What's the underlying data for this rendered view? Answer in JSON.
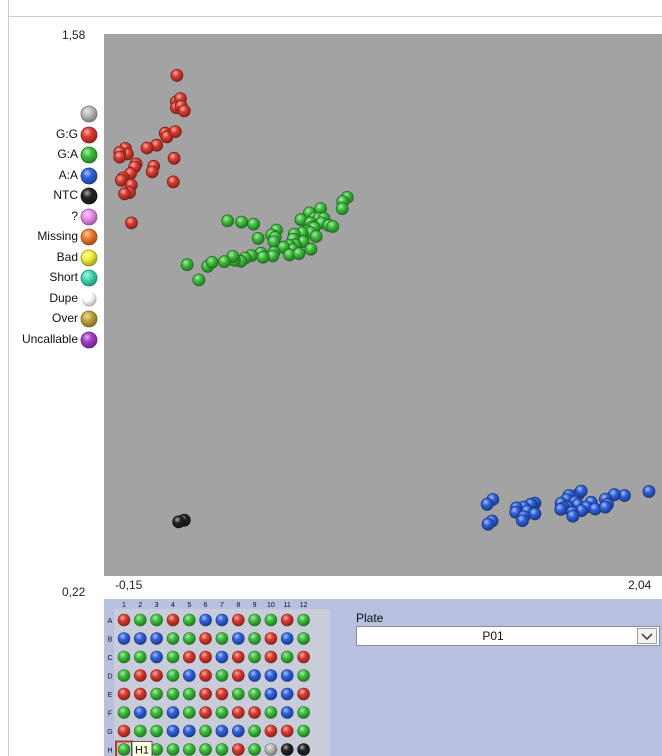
{
  "colors": {
    "blank": "#bdbdbd",
    "GG": "#dd3b30",
    "GA": "#3cc03c",
    "AA": "#2f62e0",
    "NTC": "#222222",
    "unknown": "#f08ef0",
    "missing": "#f07c2e",
    "bad": "#f6f03a",
    "short": "#43d9b9",
    "dupe": "#ffffff",
    "over": "#c4a53c",
    "uncallable": "#a43ec8",
    "plot_bg": "#a3a3a3",
    "panel_bg": "#b7c0de"
  },
  "legend": [
    {
      "label": "",
      "color": "#bdbdbd"
    },
    {
      "label": "G:G",
      "color": "#dd3b30"
    },
    {
      "label": "G:A",
      "color": "#3cc03c"
    },
    {
      "label": "A:A",
      "color": "#2f62e0"
    },
    {
      "label": "NTC",
      "color": "#222222"
    },
    {
      "label": "?",
      "color": "#f08ef0"
    },
    {
      "label": "Missing",
      "color": "#f07c2e"
    },
    {
      "label": "Bad",
      "color": "#f6f03a"
    },
    {
      "label": "Short",
      "color": "#43d9b9"
    },
    {
      "label": "Dupe",
      "color": "#ffffff"
    },
    {
      "label": "Over",
      "color": "#c4a53c"
    },
    {
      "label": "Uncallable",
      "color": "#a43ec8"
    }
  ],
  "chart_data": {
    "type": "scatter",
    "title": "",
    "xlabel": "",
    "ylabel": "",
    "xlim": [
      -0.15,
      2.04
    ],
    "ylim": [
      0.22,
      1.58
    ],
    "x_tick_labels": [
      "-0,15",
      "2,04"
    ],
    "y_tick_labels": [
      "1,58",
      "0,22"
    ],
    "grid": false,
    "series": [
      {
        "name": "G:G",
        "color": "#dd3b30",
        "points": [
          [
            0.136,
            1.476
          ],
          [
            0.134,
            1.41
          ],
          [
            0.15,
            1.418
          ],
          [
            0.134,
            1.395
          ],
          [
            0.153,
            1.399
          ],
          [
            0.165,
            1.387
          ],
          [
            0.09,
            1.331
          ],
          [
            0.097,
            1.322
          ],
          [
            0.13,
            1.335
          ],
          [
            0.057,
            1.301
          ],
          [
            0.019,
            1.294
          ],
          [
            -0.066,
            1.293
          ],
          [
            -0.058,
            1.279
          ],
          [
            -0.088,
            1.283
          ],
          [
            -0.088,
            1.271
          ],
          [
            0.125,
            1.268
          ],
          [
            -0.024,
            1.254
          ],
          [
            -0.03,
            1.246
          ],
          [
            0.045,
            1.248
          ],
          [
            0.039,
            1.234
          ],
          [
            -0.046,
            1.23
          ],
          [
            -0.075,
            1.219
          ],
          [
            -0.082,
            1.213
          ],
          [
            0.122,
            1.209
          ],
          [
            -0.043,
            1.201
          ],
          [
            -0.05,
            1.182
          ],
          [
            -0.069,
            1.179
          ],
          [
            -0.042,
            1.106
          ]
        ]
      },
      {
        "name": "G:A",
        "color": "#3cc03c",
        "points": [
          [
            0.805,
            1.17
          ],
          [
            0.787,
            1.16
          ],
          [
            0.785,
            1.142
          ],
          [
            0.7,
            1.142
          ],
          [
            0.656,
            1.131
          ],
          [
            0.677,
            1.118
          ],
          [
            0.693,
            1.117
          ],
          [
            0.713,
            1.117
          ],
          [
            0.623,
            1.114
          ],
          [
            0.66,
            1.106
          ],
          [
            0.667,
            1.096
          ],
          [
            0.704,
            1.106
          ],
          [
            0.732,
            1.1
          ],
          [
            0.748,
            1.097
          ],
          [
            0.675,
            1.094
          ],
          [
            0.646,
            1.085
          ],
          [
            0.661,
            1.082
          ],
          [
            0.628,
            1.081
          ],
          [
            0.597,
            1.078
          ],
          [
            0.527,
            1.088
          ],
          [
            0.508,
            1.076
          ],
          [
            0.455,
            1.067
          ],
          [
            0.437,
            1.103
          ],
          [
            0.39,
            1.108
          ],
          [
            0.335,
            1.111
          ],
          [
            0.683,
            1.072
          ],
          [
            0.522,
            1.07
          ],
          [
            0.517,
            1.059
          ],
          [
            0.631,
            1.059
          ],
          [
            0.592,
            1.065
          ],
          [
            0.6,
            1.051
          ],
          [
            0.578,
            1.049
          ],
          [
            0.662,
            1.04
          ],
          [
            0.589,
            1.039
          ],
          [
            0.555,
            1.045
          ],
          [
            0.578,
            1.026
          ],
          [
            0.517,
            1.032
          ],
          [
            0.512,
            1.023
          ],
          [
            0.466,
            1.03
          ],
          [
            0.474,
            1.02
          ],
          [
            0.428,
            1.024
          ],
          [
            0.404,
            1.018
          ],
          [
            0.387,
            1.01
          ],
          [
            0.362,
            1.012
          ],
          [
            0.356,
            1.022
          ],
          [
            0.322,
            1.009
          ],
          [
            0.257,
            0.997
          ],
          [
            0.274,
            1.007
          ],
          [
            0.176,
            1.001
          ],
          [
            0.222,
            0.963
          ],
          [
            0.615,
            1.029
          ]
        ]
      },
      {
        "name": "A:A",
        "color": "#2f62e0",
        "points": [
          [
            1.989,
            0.432
          ],
          [
            1.893,
            0.422
          ],
          [
            1.853,
            0.424
          ],
          [
            1.818,
            0.413
          ],
          [
            1.826,
            0.4
          ],
          [
            1.712,
            0.425
          ],
          [
            1.723,
            0.433
          ],
          [
            1.691,
            0.416
          ],
          [
            1.675,
            0.422
          ],
          [
            1.666,
            0.412
          ],
          [
            1.644,
            0.403
          ],
          [
            1.699,
            0.406
          ],
          [
            1.762,
            0.405
          ],
          [
            1.709,
            0.399
          ],
          [
            1.744,
            0.393
          ],
          [
            1.671,
            0.393
          ],
          [
            1.654,
            0.391
          ],
          [
            1.643,
            0.387
          ],
          [
            1.778,
            0.388
          ],
          [
            1.724,
            0.384
          ],
          [
            1.688,
            0.38
          ],
          [
            1.69,
            0.37
          ],
          [
            1.541,
            0.403
          ],
          [
            1.533,
            0.394
          ],
          [
            1.525,
            0.4
          ],
          [
            1.498,
            0.393
          ],
          [
            1.469,
            0.391
          ],
          [
            1.466,
            0.38
          ],
          [
            1.526,
            0.38
          ],
          [
            1.511,
            0.383
          ],
          [
            1.541,
            0.376
          ],
          [
            1.498,
            0.369
          ],
          [
            1.492,
            0.359
          ],
          [
            1.376,
            0.412
          ],
          [
            1.354,
            0.4
          ],
          [
            1.373,
            0.358
          ],
          [
            1.357,
            0.35
          ],
          [
            1.818,
            0.393
          ]
        ]
      },
      {
        "name": "NTC",
        "color": "#222222",
        "points": [
          [
            0.165,
            0.36
          ],
          [
            0.143,
            0.356
          ]
        ]
      }
    ]
  },
  "plate": {
    "col_labels": [
      "1",
      "2",
      "3",
      "4",
      "5",
      "6",
      "7",
      "8",
      "9",
      "10",
      "11",
      "12"
    ],
    "row_labels": [
      "A",
      "B",
      "C",
      "D",
      "E",
      "F",
      "G",
      "H"
    ],
    "wells": [
      [
        "GG",
        "GA",
        "GA",
        "GG",
        "GA",
        "AA",
        "AA",
        "GG",
        "GA",
        "GA",
        "GG",
        "GA"
      ],
      [
        "AA",
        "AA",
        "AA",
        "GA",
        "GA",
        "GG",
        "GA",
        "AA",
        "GA",
        "GG",
        "AA",
        "GA"
      ],
      [
        "GA",
        "GA",
        "AA",
        "GA",
        "GG",
        "GG",
        "AA",
        "GG",
        "GA",
        "GG",
        "GA",
        "GG"
      ],
      [
        "GA",
        "GG",
        "GG",
        "GA",
        "AA",
        "GG",
        "GA",
        "GG",
        "AA",
        "AA",
        "AA",
        "GA"
      ],
      [
        "GG",
        "GG",
        "GA",
        "GA",
        "GA",
        "GG",
        "GG",
        "GA",
        "GA",
        "AA",
        "AA",
        "GG"
      ],
      [
        "GA",
        "AA",
        "GA",
        "AA",
        "GA",
        "GG",
        "GA",
        "GG",
        "GG",
        "GA",
        "AA",
        "GA"
      ],
      [
        "GG",
        "GA",
        "GA",
        "AA",
        "AA",
        "GA",
        "AA",
        "AA",
        "GA",
        "GG",
        "GG",
        "GA"
      ],
      [
        "GA",
        "GA",
        "GA",
        "GA",
        "GA",
        "GA",
        "GA",
        "GG",
        "GA",
        "blank",
        "NTC",
        "NTC"
      ]
    ],
    "selected_well": "H1",
    "dropdown_label": "Plate",
    "dropdown_value": "P01"
  }
}
